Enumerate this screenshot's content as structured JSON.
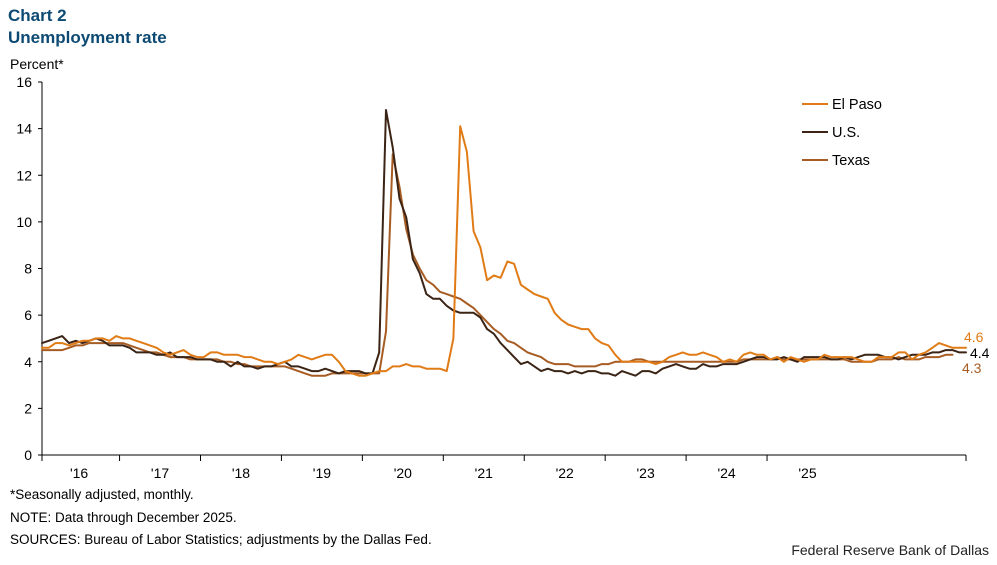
{
  "header": {
    "label": "Chart 2",
    "title": "Unemployment rate"
  },
  "footer": {
    "seasonal_note": "*Seasonally adjusted, monthly.",
    "data_note": "NOTE: Data through December 2025.",
    "sources": "SOURCES: Bureau of Labor Statistics; adjustments by the Dallas Fed.",
    "credit": "Federal Reserve Bank of Dallas"
  },
  "chart_data": {
    "type": "line",
    "title": "Unemployment rate",
    "ylabel": "Percent*",
    "xlabel": "",
    "ylim": [
      0,
      16
    ],
    "yticks": [
      "0",
      "2",
      "4",
      "6",
      "8",
      "10",
      "12",
      "14",
      "16"
    ],
    "x_start": "2016-01",
    "x_end": "2025-12",
    "xtick_labels": [
      "'16",
      "'17",
      "'18",
      "'19",
      "'20",
      "'21",
      "'22",
      "'23",
      "'24",
      "'25"
    ],
    "legend_position": "top-right",
    "colors": {
      "El Paso": "#e07b16",
      "U.S.": "#3b2415",
      "Texas": "#a75c24"
    },
    "end_labels": {
      "El Paso": "4.6",
      "U.S.": "4.4",
      "Texas": "4.3"
    },
    "series": [
      {
        "name": "El Paso",
        "values": [
          4.6,
          4.6,
          4.8,
          4.8,
          4.7,
          4.8,
          4.9,
          4.9,
          5.0,
          5.0,
          4.9,
          5.1,
          5.0,
          5.0,
          4.9,
          4.8,
          4.7,
          4.6,
          4.4,
          4.3,
          4.4,
          4.5,
          4.3,
          4.2,
          4.2,
          4.4,
          4.4,
          4.3,
          4.3,
          4.3,
          4.2,
          4.2,
          4.1,
          4.0,
          4.0,
          3.9,
          4.0,
          4.1,
          4.3,
          4.2,
          4.1,
          4.2,
          4.3,
          4.3,
          4.0,
          3.6,
          3.5,
          3.4,
          3.4,
          3.5,
          3.6,
          3.6,
          3.8,
          3.8,
          3.9,
          3.8,
          3.8,
          3.7,
          3.7,
          3.7,
          3.6,
          5.0,
          14.1,
          13.0,
          9.6,
          8.9,
          7.5,
          7.7,
          7.6,
          8.3,
          8.2,
          7.3,
          7.1,
          6.9,
          6.8,
          6.7,
          6.1,
          5.8,
          5.6,
          5.5,
          5.4,
          5.4,
          5.0,
          4.8,
          4.7,
          4.3,
          4.0,
          4.0,
          4.0,
          4.0,
          4.0,
          3.9,
          4.0,
          4.2,
          4.3,
          4.4,
          4.3,
          4.3,
          4.4,
          4.3,
          4.2,
          4.0,
          4.1,
          4.0,
          4.3,
          4.4,
          4.3,
          4.3,
          4.1,
          4.2,
          4.0,
          4.2,
          4.1,
          4.0,
          4.1,
          4.1,
          4.3,
          4.2,
          4.2,
          4.2,
          4.2,
          4.1,
          4.0,
          4.0,
          4.2,
          4.2,
          4.2,
          4.4,
          4.4,
          4.1,
          4.3,
          4.4,
          4.6,
          4.8,
          4.7,
          4.6,
          4.6,
          4.6
        ]
      },
      {
        "name": "U.S.",
        "values": [
          4.8,
          4.9,
          5.0,
          5.1,
          4.8,
          4.9,
          4.8,
          4.9,
          5.0,
          4.9,
          4.7,
          4.7,
          4.7,
          4.6,
          4.4,
          4.4,
          4.4,
          4.3,
          4.3,
          4.4,
          4.2,
          4.2,
          4.2,
          4.1,
          4.1,
          4.1,
          4.0,
          4.0,
          3.8,
          4.0,
          3.8,
          3.8,
          3.7,
          3.8,
          3.8,
          3.9,
          4.0,
          3.8,
          3.8,
          3.7,
          3.6,
          3.6,
          3.7,
          3.6,
          3.5,
          3.6,
          3.6,
          3.6,
          3.5,
          3.5,
          4.4,
          14.8,
          13.2,
          11.0,
          10.2,
          8.4,
          7.8,
          6.9,
          6.7,
          6.7,
          6.4,
          6.2,
          6.1,
          6.1,
          6.1,
          5.9,
          5.4,
          5.2,
          4.8,
          4.5,
          4.2,
          3.9,
          4.0,
          3.8,
          3.6,
          3.7,
          3.6,
          3.6,
          3.5,
          3.6,
          3.5,
          3.6,
          3.6,
          3.5,
          3.5,
          3.4,
          3.6,
          3.5,
          3.4,
          3.6,
          3.6,
          3.5,
          3.7,
          3.8,
          3.9,
          3.8,
          3.7,
          3.7,
          3.9,
          3.8,
          3.8,
          3.9,
          3.9,
          3.9,
          4.0,
          4.1,
          4.2,
          4.2,
          4.1,
          4.1,
          4.2,
          4.1,
          4.0,
          4.2,
          4.2,
          4.2,
          4.2,
          4.1,
          4.1,
          4.2,
          4.1,
          4.2,
          4.3,
          4.3,
          4.3,
          4.2,
          4.2,
          4.1,
          4.2,
          4.3,
          4.3,
          4.3,
          4.4,
          4.4,
          4.5,
          4.5,
          4.4,
          4.4
        ]
      },
      {
        "name": "Texas",
        "values": [
          4.5,
          4.5,
          4.5,
          4.5,
          4.6,
          4.7,
          4.7,
          4.8,
          4.8,
          4.8,
          4.8,
          4.8,
          4.8,
          4.7,
          4.6,
          4.5,
          4.4,
          4.4,
          4.3,
          4.2,
          4.2,
          4.2,
          4.1,
          4.1,
          4.1,
          4.1,
          4.1,
          4.0,
          4.0,
          3.9,
          3.9,
          3.8,
          3.8,
          3.8,
          3.8,
          3.8,
          3.8,
          3.7,
          3.6,
          3.5,
          3.4,
          3.4,
          3.4,
          3.5,
          3.5,
          3.5,
          3.5,
          3.5,
          3.5,
          3.5,
          3.5,
          5.3,
          12.9,
          11.5,
          9.7,
          8.6,
          8.0,
          7.5,
          7.3,
          7.0,
          6.9,
          6.8,
          6.7,
          6.5,
          6.3,
          6.0,
          5.7,
          5.4,
          5.2,
          4.9,
          4.8,
          4.6,
          4.4,
          4.3,
          4.2,
          4.0,
          3.9,
          3.9,
          3.9,
          3.8,
          3.8,
          3.8,
          3.8,
          3.9,
          3.9,
          4.0,
          4.0,
          4.0,
          4.1,
          4.1,
          4.0,
          4.0,
          4.0,
          4.0,
          4.0,
          4.0,
          4.0,
          4.0,
          4.0,
          4.0,
          4.0,
          4.0,
          4.0,
          4.0,
          4.1,
          4.1,
          4.1,
          4.1,
          4.1,
          4.2,
          4.1,
          4.1,
          4.1,
          4.1,
          4.1,
          4.1,
          4.1,
          4.1,
          4.1,
          4.1,
          4.0,
          4.0,
          4.0,
          4.0,
          4.1,
          4.1,
          4.1,
          4.2,
          4.1,
          4.1,
          4.1,
          4.2,
          4.2,
          4.2,
          4.3,
          4.3
        ]
      }
    ]
  }
}
